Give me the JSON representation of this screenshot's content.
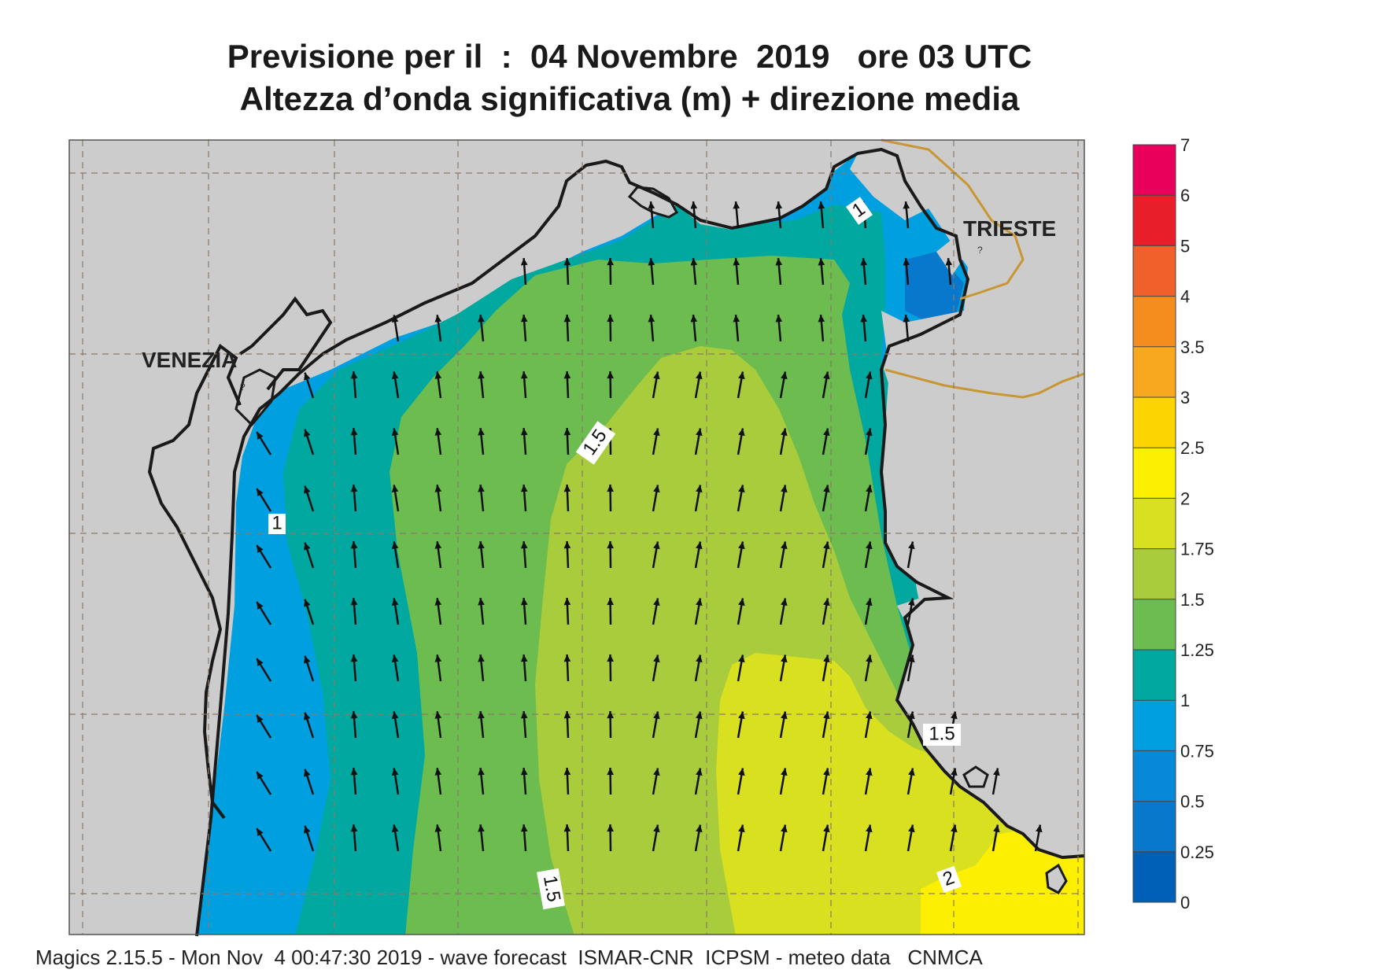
{
  "header": {
    "title_line1": "Previsione per il  :  04 Novembre  2019   ore 03 UTC",
    "title_line2": "Altezza d’onda significativa (m) + direzione media"
  },
  "places": {
    "venezia": "VENEZIA",
    "trieste": "TRIESTE"
  },
  "contour_labels": {
    "c1_north": "1",
    "c1_west": "1",
    "c15_center": "1.5",
    "c15_east": "1.5",
    "c15_south": "1.5",
    "c2_south": "2"
  },
  "colorbar": {
    "ticks": [
      "7",
      "6",
      "5",
      "4",
      "3.5",
      "3",
      "2.5",
      "2",
      "1.75",
      "1.5",
      "1.25",
      "1",
      "0.75",
      "0.5",
      "0.25",
      "0"
    ],
    "colors": [
      "#e8005a",
      "#e81e2a",
      "#f0602a",
      "#f48c1e",
      "#f8a81e",
      "#fcd400",
      "#fcf000",
      "#d8e020",
      "#a8cc3c",
      "#6cbc50",
      "#00a8a0",
      "#00a0e0",
      "#0888d8",
      "#0878cc",
      "#0060b8"
    ]
  },
  "colors": {
    "land": "#cccccc",
    "sea_025": "#0878cc",
    "sea_075": "#00a0e0",
    "sea_1": "#00a8a0",
    "sea_125": "#6cbc50",
    "sea_15": "#a8cc3c",
    "sea_175": "#d8e020",
    "sea_2": "#fcf000",
    "border": "#c89632"
  },
  "footer": {
    "text": "Magics 2.15.5 - Mon Nov  4 00:47:30 2019 - wave forecast  ISMAR-CNR  ICPSM - meteo data   CNMCA"
  }
}
